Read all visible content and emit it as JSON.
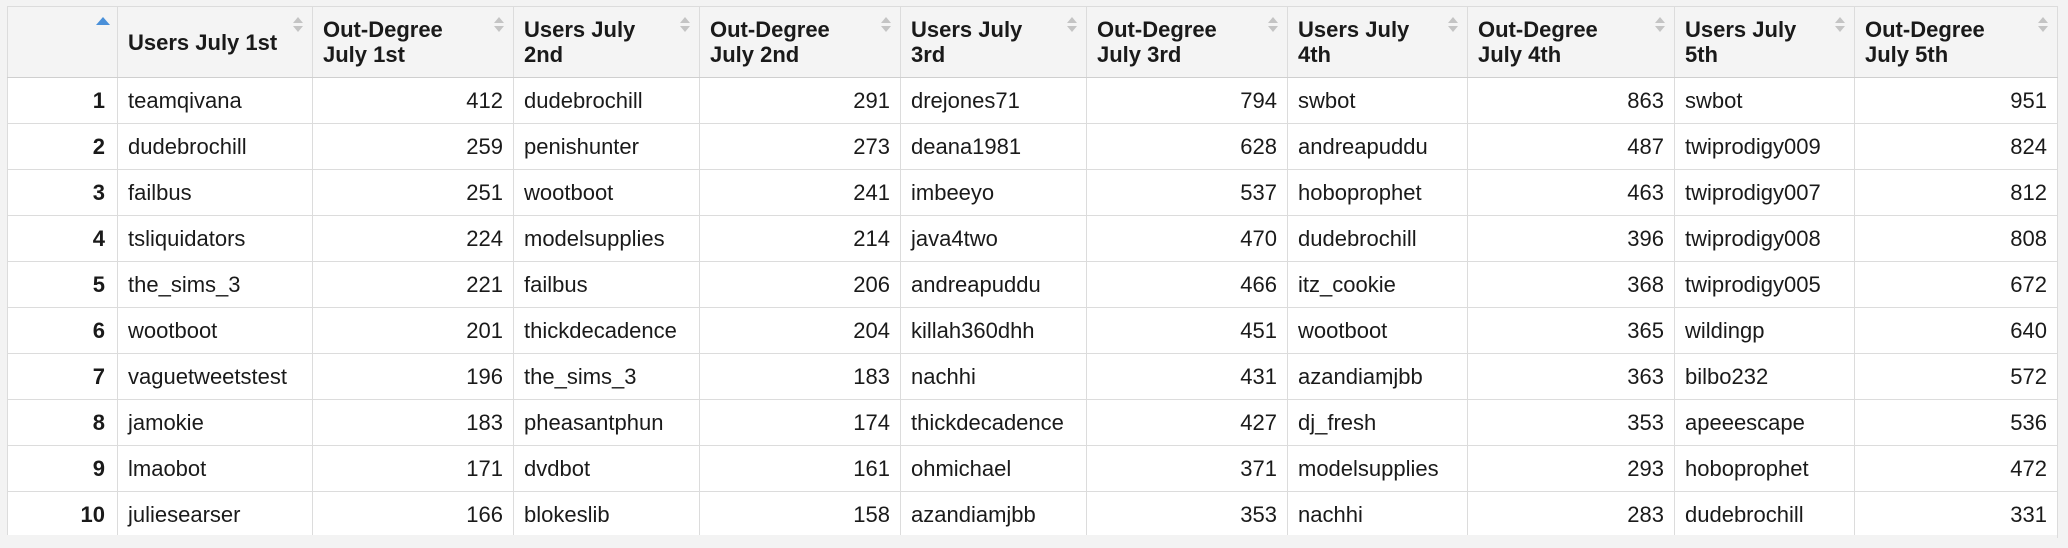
{
  "table": {
    "columns": [
      {
        "label": "Users July 1st",
        "type": "user"
      },
      {
        "label": "Out-Degree July 1st",
        "type": "num"
      },
      {
        "label": "Users July 2nd",
        "type": "user"
      },
      {
        "label": "Out-Degree July 2nd",
        "type": "num"
      },
      {
        "label": "Users July 3rd",
        "type": "user"
      },
      {
        "label": "Out-Degree July 3rd",
        "type": "num"
      },
      {
        "label": "Users July 4th",
        "type": "user"
      },
      {
        "label": "Out-Degree July 4th",
        "type": "num"
      },
      {
        "label": "Users July 5th",
        "type": "user"
      },
      {
        "label": "Out-Degree July 5th",
        "type": "num"
      }
    ],
    "rows": [
      {
        "n": "1",
        "cells": [
          "teamqivana",
          "412",
          "dudebrochill",
          "291",
          "drejones71",
          "794",
          "swbot",
          "863",
          "swbot",
          "951"
        ]
      },
      {
        "n": "2",
        "cells": [
          "dudebrochill",
          "259",
          "penishunter",
          "273",
          "deana1981",
          "628",
          "andreapuddu",
          "487",
          "twiprodigy009",
          "824"
        ]
      },
      {
        "n": "3",
        "cells": [
          "failbus",
          "251",
          "wootboot",
          "241",
          "imbeeyo",
          "537",
          "hoboprophet",
          "463",
          "twiprodigy007",
          "812"
        ]
      },
      {
        "n": "4",
        "cells": [
          "tsliquidators",
          "224",
          "modelsupplies",
          "214",
          "java4two",
          "470",
          "dudebrochill",
          "396",
          "twiprodigy008",
          "808"
        ]
      },
      {
        "n": "5",
        "cells": [
          "the_sims_3",
          "221",
          "failbus",
          "206",
          "andreapuddu",
          "466",
          "itz_cookie",
          "368",
          "twiprodigy005",
          "672"
        ]
      },
      {
        "n": "6",
        "cells": [
          "wootboot",
          "201",
          "thickdecadence",
          "204",
          "killah360dhh",
          "451",
          "wootboot",
          "365",
          "wildingp",
          "640"
        ]
      },
      {
        "n": "7",
        "cells": [
          "vaguetweetstest",
          "196",
          "the_sims_3",
          "183",
          "nachhi",
          "431",
          "azandiamjbb",
          "363",
          "bilbo232",
          "572"
        ]
      },
      {
        "n": "8",
        "cells": [
          "jamokie",
          "183",
          "pheasantphun",
          "174",
          "thickdecadence",
          "427",
          "dj_fresh",
          "353",
          "apeeescape",
          "536"
        ]
      },
      {
        "n": "9",
        "cells": [
          "lmaobot",
          "171",
          "dvdbot",
          "161",
          "ohmichael",
          "371",
          "modelsupplies",
          "293",
          "hoboprophet",
          "472"
        ]
      },
      {
        "n": "10",
        "cells": [
          "juliesearser",
          "166",
          "blokeslib",
          "158",
          "azandiamjbb",
          "353",
          "nachhi",
          "283",
          "dudebrochill",
          "331"
        ]
      }
    ]
  },
  "colors": {
    "header_bg": "#f4f4f4",
    "grid_line": "#dcdcdc",
    "sort_active": "#4a90d9",
    "sort_inactive": "#c4c4c4"
  },
  "icons": {
    "row_number_sort": "sort-ascending-icon",
    "column_sort": "sort-icon"
  }
}
